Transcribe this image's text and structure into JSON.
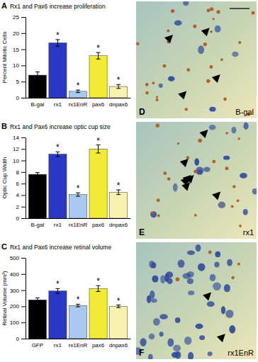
{
  "chart_data": [
    {
      "type": "bar",
      "panel": "A",
      "title": "Rx1 and Pax6 increase proliferation",
      "y_label": "Percent Mitotic Cells",
      "categories": [
        "B-gal",
        "rx1",
        "rx1EnR",
        "pax6",
        "dnpax6"
      ],
      "values": [
        7,
        17,
        2,
        13,
        3.5
      ],
      "errors": [
        1,
        1,
        0.4,
        1,
        0.6
      ],
      "significance": [
        null,
        "*",
        "*",
        "*",
        "*"
      ],
      "colors": [
        "#000000",
        "#2a38c8",
        "#a9c9f0",
        "#f3ea35",
        "#f8f2ae"
      ],
      "ylim": [
        0,
        25
      ],
      "yticks": [
        0,
        5,
        10,
        15,
        20,
        25
      ]
    },
    {
      "type": "bar",
      "panel": "B",
      "title": "Rx1 and Pax6 increase optic cup size",
      "y_label": "Optic Cup Width",
      "categories": [
        "B-gal",
        "rx1",
        "rx1EnR",
        "pax6",
        "dnpax6"
      ],
      "values": [
        7.6,
        11.1,
        4.1,
        12.0,
        4.5
      ],
      "errors": [
        0.3,
        0.4,
        0.3,
        0.7,
        0.4
      ],
      "significance": [
        null,
        "*",
        "*",
        "*",
        "*"
      ],
      "colors": [
        "#000000",
        "#2a38c8",
        "#a9c9f0",
        "#f3ea35",
        "#f8f2ae"
      ],
      "ylim": [
        0,
        14
      ],
      "yticks": [
        0,
        2,
        4,
        6,
        8,
        10,
        12,
        14
      ]
    },
    {
      "type": "bar",
      "panel": "C",
      "title": "Rx1 and Pax6 increase retinal volume",
      "y_label": "Retinal Volume (mm³)",
      "categories": [
        "GFP",
        "rx1",
        "rx1EnR",
        "pax6",
        "dnpax6"
      ],
      "values": [
        240,
        295,
        205,
        310,
        200
      ],
      "errors": [
        12,
        15,
        8,
        18,
        8
      ],
      "significance": [
        null,
        "*",
        "*",
        "*",
        "*"
      ],
      "colors": [
        "#000000",
        "#2a38c8",
        "#a9c9f0",
        "#f3ea35",
        "#f8f2ae"
      ],
      "ylim": [
        0,
        500
      ],
      "yticks": [
        0,
        100,
        200,
        300,
        400,
        500
      ]
    }
  ],
  "images": [
    {
      "panel": "D",
      "label": "B-gal"
    },
    {
      "panel": "E",
      "label": "rx1"
    },
    {
      "panel": "F",
      "label": "rx1EnR"
    }
  ]
}
